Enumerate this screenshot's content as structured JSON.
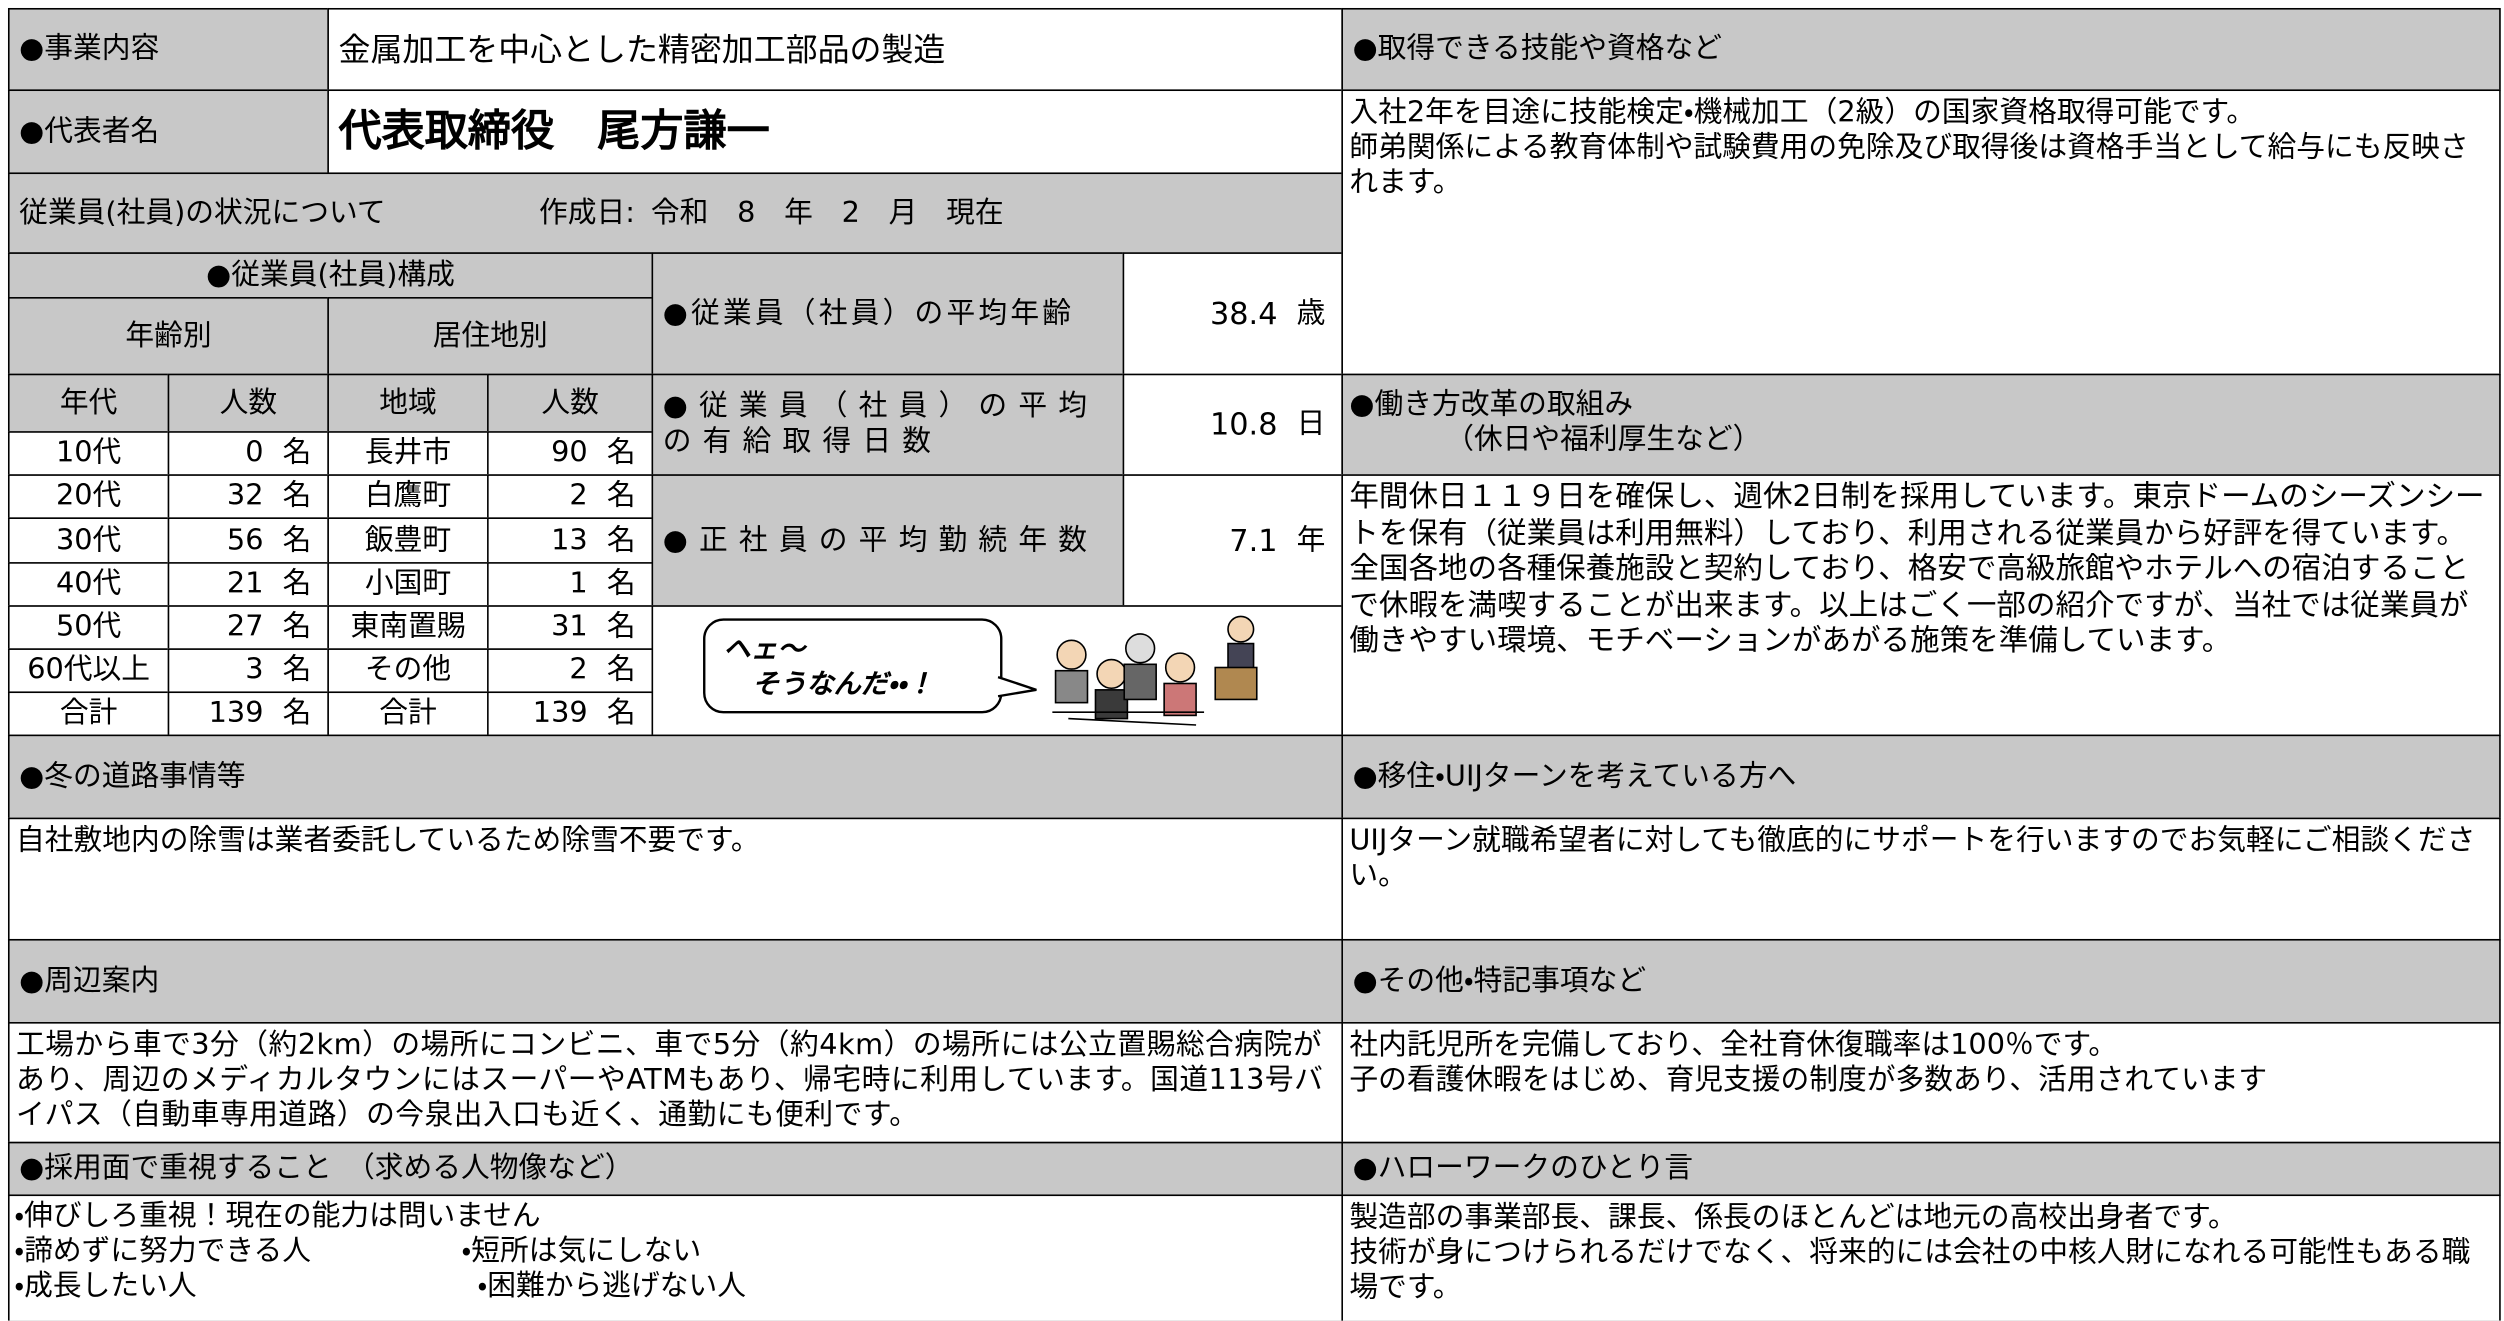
{
  "business": {
    "label": "●事業内容",
    "value": "金属加工を中心とした精密加工部品の製造"
  },
  "representative": {
    "label": "●代表者名",
    "value": "代表取締役　尾方謙一"
  },
  "employee_status": {
    "title": "従業員(社員)の状況について",
    "created_label": "作成日:",
    "date": "令和　8　年　2　月　現在"
  },
  "composition": {
    "title": "●従業員(社員)構成",
    "age_title": "年齢別",
    "residence_title": "居住地別",
    "headers": [
      "年代",
      "人数",
      "地域",
      "人数"
    ],
    "unit": "名",
    "rows": [
      {
        "age": "10代",
        "age_count": 0,
        "region": "長井市",
        "region_count": 90
      },
      {
        "age": "20代",
        "age_count": 32,
        "region": "白鷹町",
        "region_count": 2
      },
      {
        "age": "30代",
        "age_count": 56,
        "region": "飯豊町",
        "region_count": 13
      },
      {
        "age": "40代",
        "age_count": 21,
        "region": "小国町",
        "region_count": 1
      },
      {
        "age": "50代",
        "age_count": 27,
        "region": "東南置賜",
        "region_count": 31
      },
      {
        "age": "60代以上",
        "age_count": 3,
        "region": "その他",
        "region_count": 2
      },
      {
        "age": "合計",
        "age_count": 139,
        "region": "合計",
        "region_count": 139
      }
    ]
  },
  "stats": [
    {
      "label": "●従業員（社員）の平均年齢",
      "value": 38.4,
      "unit": "歳"
    },
    {
      "label": "●従業員（社員）の平均の有給取得日数",
      "value": 10.8,
      "unit": "日"
    },
    {
      "label": "●正社員の平均勤続年数",
      "value": 7.1,
      "unit": "年"
    }
  ],
  "speech": [
    "ヘェ～",
    "そうなんだ・・！"
  ],
  "skills": {
    "title": "●取得できる技能や資格など",
    "lines": [
      "入社2年を目途に技能検定・機械加工（2級）の国家資格取得可能です。",
      "師弟関係による教育体制や試験費用の免除及び取得後は資格手当として給与にも反映されます。"
    ]
  },
  "work_style": {
    "title": "●働き方改革の取組み",
    "subtitle": "（休日や福利厚生など）",
    "text": "年間休日１１９日を確保し、週休2日制を採用しています。東京ドームのシーズンシートを保有（従業員は利用無料）しており、利用される従業員から好評を得ています。全国各地の各種保養施設と契約しており、格安で高級旅館やホテルへの宿泊することで休暇を満喫することが出来ます。以上はごく一部の紹介ですが、当社では従業員が働きやすい環境、モチベーションがあがる施策を準備しています。"
  },
  "uij": {
    "title": "●移住・UIJターンを考えている方へ",
    "text": "UIJターン就職希望者に対しても徹底的にサポートを行いますのでお気軽にご相談ください。"
  },
  "other": {
    "title": "●その他・特記事項など",
    "lines": [
      "社内託児所を完備しており、全社育休復職率は100％です。",
      "子の看護休暇をはじめ、育児支援の制度が多数あり、活用されています"
    ]
  },
  "hellowork": {
    "title": "●ハローワークのひとり言",
    "lines": [
      "製造部の事業部長、課長、係長のほとんどは地元の高校出身者です。",
      "技術が身につけられるだけでなく、将来的には会社の中核人財になれる可能性もある職場です。"
    ]
  },
  "winter": {
    "title": "●冬の道路事情等",
    "text": "自社敷地内の除雪は業者委託しているため除雪不要です。"
  },
  "surroundings": {
    "title": "●周辺案内",
    "text": "工場から車で3分（約2km）の場所にコンビニ、車で5分（約4km）の場所には公立置賜総合病院があり、周辺のメディカルタウンにはスーパーやATMもあり、帰宅時に利用しています。国道113号バイパス（自動車専用道路）の今泉出入口も近く、通勤にも便利です。"
  },
  "hiring": {
    "title": "●採用面で重視すること　（求める人物像など）",
    "items": [
      "・伸びしろ重視！現在の能力は問いません",
      "・諦めずに努力できる人",
      "・短所は気にしない",
      "・成長したい人",
      "・困難から逃げない人"
    ]
  }
}
